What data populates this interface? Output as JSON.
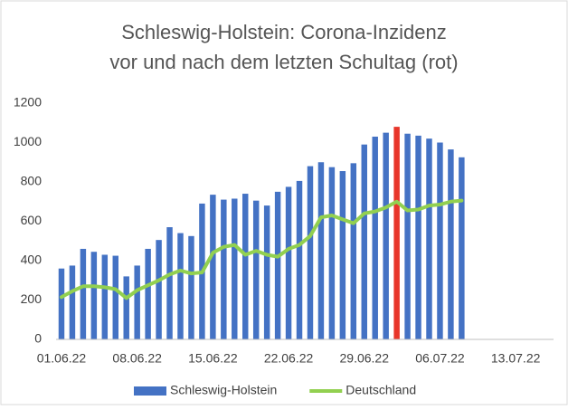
{
  "chart_data": {
    "type": "bar_line",
    "title": [
      "Schleswig-Holstein: Corona-Inzidenz",
      "vor und nach dem letzten Schultag (rot)"
    ],
    "categories": [
      "01.06.22",
      null,
      null,
      null,
      null,
      null,
      null,
      "08.06.22",
      null,
      null,
      null,
      null,
      null,
      null,
      "15.06.22",
      null,
      null,
      null,
      null,
      null,
      null,
      "22.06.22",
      null,
      null,
      null,
      null,
      null,
      null,
      "29.06.22",
      null,
      null,
      null,
      null,
      null,
      null,
      "06.07.22",
      null,
      null,
      null,
      null,
      null,
      null,
      "13.07.22",
      null,
      null,
      null
    ],
    "series": [
      {
        "name": "Schleswig-Holstein",
        "kind": "bar",
        "color": "#4472c4",
        "highlight_index": 31,
        "highlight_color": "#e8352a",
        "values": [
          360,
          375,
          460,
          445,
          430,
          425,
          320,
          375,
          460,
          505,
          570,
          540,
          525,
          690,
          735,
          710,
          715,
          740,
          705,
          680,
          750,
          775,
          805,
          880,
          900,
          875,
          855,
          895,
          990,
          1030,
          1050,
          1080,
          1045,
          1035,
          1020,
          1000,
          965,
          925,
          null,
          null,
          null,
          null,
          null,
          null,
          null,
          null
        ]
      },
      {
        "name": "Deutschland",
        "kind": "line",
        "color": "#92d050",
        "values": [
          215,
          245,
          270,
          270,
          265,
          255,
          210,
          250,
          275,
          300,
          330,
          350,
          335,
          340,
          440,
          470,
          480,
          430,
          450,
          430,
          420,
          460,
          480,
          525,
          620,
          630,
          610,
          590,
          640,
          650,
          670,
          700,
          655,
          660,
          680,
          685,
          700,
          705,
          null,
          null,
          null,
          null,
          null,
          null,
          null,
          null
        ]
      }
    ],
    "ylim": [
      0,
      1200
    ],
    "yticks": [
      0,
      200,
      400,
      600,
      800,
      1000,
      1200
    ],
    "grid": false,
    "legend": "bottom"
  }
}
